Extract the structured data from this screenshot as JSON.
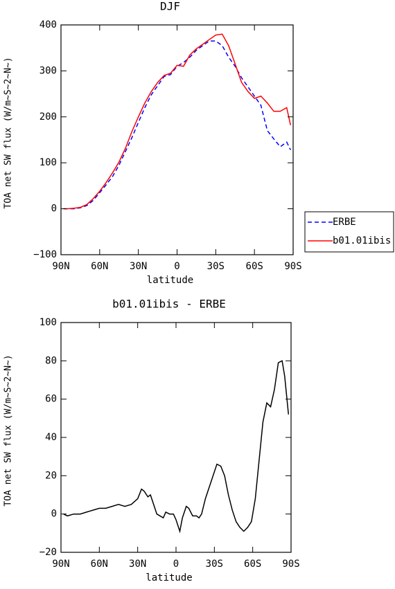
{
  "chart_data": [
    {
      "type": "line",
      "title": "DJF",
      "xlabel": "latitude",
      "ylabel": "TOA net SW flux (W/m~S~2~N~)",
      "x": [
        88,
        85,
        80,
        75,
        70,
        65,
        60,
        55,
        50,
        45,
        40,
        35,
        30,
        25,
        20,
        15,
        10,
        5,
        0,
        -5,
        -10,
        -15,
        -20,
        -25,
        -30,
        -35,
        -40,
        -45,
        -50,
        -55,
        -60,
        -65,
        -70,
        -75,
        -80,
        -85,
        -88
      ],
      "series": [
        {
          "name": "ERBE",
          "color": "#0000ff",
          "linestyle": "dashed",
          "values": [
            0,
            0,
            0,
            2,
            7,
            18,
            35,
            52,
            70,
            95,
            125,
            155,
            188,
            220,
            248,
            268,
            288,
            292,
            310,
            318,
            330,
            345,
            355,
            365,
            365,
            355,
            330,
            310,
            285,
            265,
            245,
            225,
            170,
            152,
            135,
            145,
            128
          ]
        },
        {
          "name": "b01.01ibis",
          "color": "#ff0000",
          "linestyle": "solid",
          "values": [
            0,
            0,
            1,
            3,
            9,
            22,
            38,
            57,
            78,
            102,
            132,
            168,
            200,
            230,
            255,
            275,
            290,
            295,
            312,
            310,
            335,
            348,
            358,
            368,
            378,
            380,
            355,
            315,
            275,
            255,
            240,
            245,
            230,
            212,
            212,
            220,
            182
          ]
        }
      ],
      "xlim": [
        90,
        -90
      ],
      "xticks": [
        {
          "value": 90,
          "label": "90N"
        },
        {
          "value": 60,
          "label": "60N"
        },
        {
          "value": 30,
          "label": "30N"
        },
        0,
        {
          "value": -30,
          "label": "30S"
        },
        {
          "value": -60,
          "label": "60S"
        },
        {
          "value": -90,
          "label": "90S"
        }
      ],
      "ylim": [
        -100,
        400
      ],
      "yticks": [
        {
          "value": -100,
          "label": "−100"
        },
        0,
        100,
        200,
        300,
        400
      ],
      "legend": "right"
    },
    {
      "type": "line",
      "title": "b01.01ibis - ERBE",
      "xlabel": "latitude",
      "ylabel": "TOA net SW flux (W/m~S~2~N~)",
      "x": [
        88,
        85,
        80,
        75,
        70,
        65,
        60,
        55,
        50,
        45,
        40,
        35,
        30,
        27,
        25,
        22,
        20,
        15,
        10,
        8,
        5,
        2,
        0,
        -3,
        -5,
        -8,
        -10,
        -13,
        -16,
        -18,
        -20,
        -23,
        -28,
        -32,
        -35,
        -38,
        -41,
        -44,
        -47,
        -50,
        -53,
        -56,
        -59,
        -62,
        -65,
        -68,
        -71,
        -74,
        -77,
        -80,
        -83,
        -85,
        -88
      ],
      "series": [
        {
          "color": "#000000",
          "linestyle": "solid",
          "values": [
            0,
            -1,
            0,
            0,
            1,
            2,
            3,
            3,
            4,
            5,
            4,
            5,
            8,
            13,
            12,
            9,
            10,
            0,
            -2,
            1,
            0,
            0,
            -3,
            -9,
            -2,
            4,
            3,
            -1,
            -1,
            -2,
            0,
            8,
            18,
            26,
            25,
            20,
            10,
            2,
            -4,
            -7,
            -9,
            -7,
            -4,
            8,
            28,
            48,
            58,
            56,
            65,
            79,
            80,
            72,
            52
          ]
        }
      ],
      "xlim": [
        90,
        -90
      ],
      "xticks": [
        {
          "value": 90,
          "label": "90N"
        },
        {
          "value": 60,
          "label": "60N"
        },
        {
          "value": 30,
          "label": "30N"
        },
        0,
        {
          "value": -30,
          "label": "30S"
        },
        {
          "value": -60,
          "label": "60S"
        },
        {
          "value": -90,
          "label": "90S"
        }
      ],
      "ylim": [
        -20,
        100
      ],
      "yticks": [
        {
          "value": -20,
          "label": "−20"
        },
        0,
        20,
        40,
        60,
        80,
        100
      ]
    }
  ]
}
